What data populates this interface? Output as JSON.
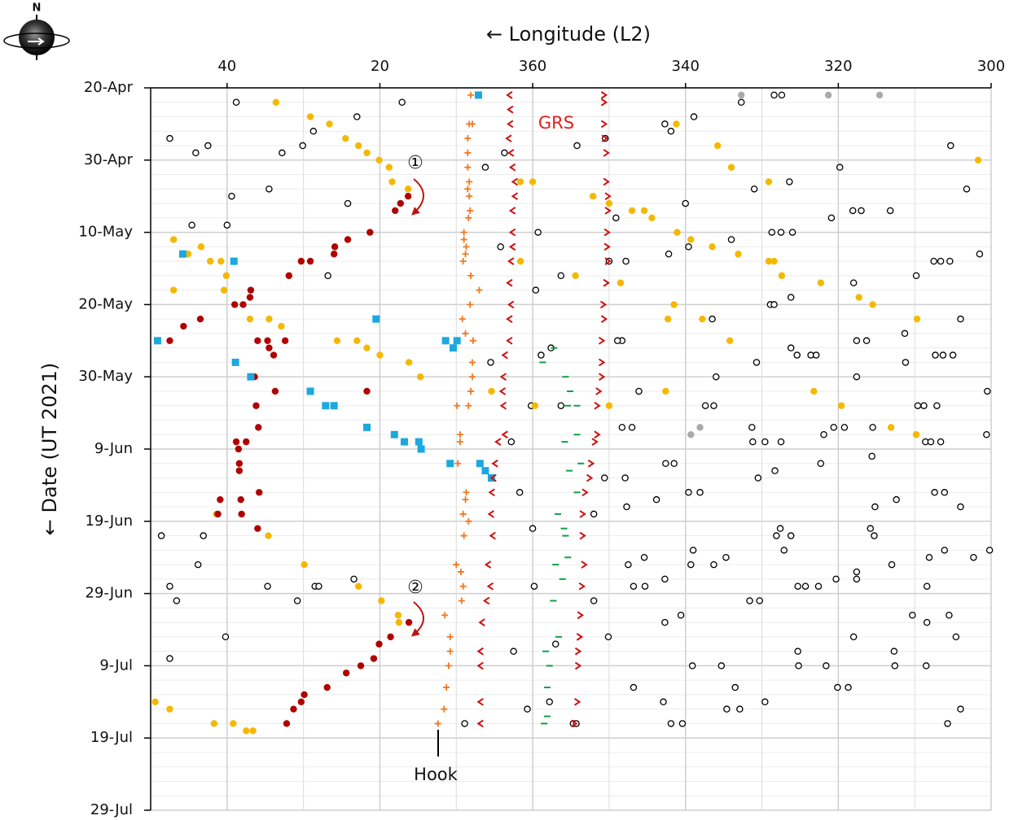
{
  "compass": "N",
  "chart_data": {
    "type": "scatter",
    "xlabel": "← Longitude (L2)",
    "ylabel": "← Date (UT 2021)",
    "annotations": [
      "GRS",
      "①",
      "②",
      "Hook"
    ],
    "xlim": [
      50,
      300
    ],
    "xticks": [
      40,
      20,
      360,
      340,
      320,
      300
    ],
    "ylim": [
      "20-Apr",
      "29-Jul"
    ],
    "yticks": [
      "20-Apr",
      "30-Apr",
      "10-May",
      "20-May",
      "30-May",
      "9-Jun",
      "19-Jun",
      "29-Jun",
      "9-Jul",
      "19-Jul",
      "29-Jul"
    ],
    "grid": true,
    "series": [
      {
        "color": "#000000",
        "marker": "circle-open",
        "x": [
          38.8,
          17.1,
          328.4,
          327.4,
          332.7,
          338.9,
          23,
          28.7,
          342.7,
          341.9,
          47.5,
          42.5,
          44.1,
          32.8,
          30.1,
          354.2,
          350.5,
          3.7,
          305.3,
          6.2,
          319.8,
          34.5,
          331,
          326.4,
          303.2,
          39.4,
          24.2,
          340,
          349.1,
          320.9,
          318.1,
          317,
          313.2,
          44.6,
          40,
          359.3,
          328.7,
          327.5,
          326,
          301.5,
          4.2,
          334,
          339.6,
          342.2,
          347.8,
          350,
          26.8,
          356.3,
          307.5,
          306.6,
          305.4,
          359.6,
          318,
          309.8,
          328.9,
          328.4,
          326.2,
          336.5,
          304,
          311.3,
          348.3,
          348.9,
          317.6,
          316.3,
          358.9,
          357.6,
          5.5,
          330.7,
          326.2,
          325.4,
          323.6,
          322.9,
          307.3,
          306.3,
          305,
          311.2,
          336,
          317.6,
          346.1,
          300.5,
          356.3,
          0.2,
          337.4,
          336.3,
          309.6,
          308.8,
          307.1,
          348.3,
          347,
          331.3,
          321.9,
          320.6,
          319.2,
          315.5,
          300.6,
          2.8,
          331.2,
          329.6,
          327.5,
          308.6,
          307.9,
          306.6,
          315.6,
          342.6,
          341.5,
          322.3,
          350.6,
          347.9,
          330.5,
          328.3,
          1.7,
          339.6,
          338.1,
          307.4,
          306.1,
          343.8,
          312.4,
          352,
          347.7,
          315.2,
          304,
          48.6,
          43.1,
          0,
          328.1,
          327.6,
          326.2,
          315.8,
          315.3,
          300.2,
          339,
          327.1,
          306.1,
          308.1,
          302.3,
          43.8,
          347.5,
          345.4,
          339.3,
          336.3,
          334.7,
          317.6,
          317.6,
          313,
          47.5,
          34.7,
          28.5,
          28,
          23.4,
          359.8,
          346.8,
          345.3,
          342.7,
          325.3,
          324.3,
          322.6,
          320.3,
          308.4,
          46.6,
          30.8,
          352,
          331.6,
          330.3,
          340.6,
          310.3,
          305.5,
          342.7,
          308.4,
          40.2,
          350.1,
          318,
          304.6,
          357,
          2.5,
          47.5,
          325.3,
          312.7,
          339.1,
          335.3,
          325.2,
          321.6,
          312.6,
          308.5,
          346.8,
          333.5,
          320.1,
          318.7,
          357.8,
          0.7,
          342.9,
          329.6,
          334.6,
          332.9,
          304,
          8.9,
          354.7,
          354.3,
          341.9,
          340.4,
          305.7
        ],
        "y": [
          "22-Apr",
          "22-Apr",
          "21-Apr",
          "21-Apr",
          "22-Apr",
          "24-Apr",
          "24-Apr",
          "26-Apr",
          "25-Apr",
          "26-Apr",
          "27-Apr",
          "28-Apr",
          "29-Apr",
          "29-Apr",
          "28-Apr",
          "28-Apr",
          "27-Apr",
          "29-Apr",
          "28-Apr",
          "1-May",
          "1-May",
          "4-May",
          "4-May",
          "3-May",
          "4-May",
          "5-May",
          "6-May",
          "6-May",
          "8-May",
          "8-May",
          "7-May",
          "7-May",
          "7-May",
          "9-May",
          "9-May",
          "10-May",
          "10-May",
          "10-May",
          "10-May",
          "13-May",
          "12-May",
          "11-May",
          "12-May",
          "13-May",
          "14-May",
          "14-May",
          "16-May",
          "16-May",
          "14-May",
          "14-May",
          "14-May",
          "18-May",
          "17-May",
          "16-May",
          "20-May",
          "20-May",
          "19-May",
          "22-May",
          "22-May",
          "24-May",
          "25-May",
          "25-May",
          "25-May",
          "25-May",
          "27-May",
          "26-May",
          "28-May",
          "28-May",
          "26-May",
          "27-May",
          "27-May",
          "27-May",
          "27-May",
          "27-May",
          "27-May",
          "28-May",
          "30-May",
          "30-May",
          "1-Jun",
          "1-Jun",
          "3-Jun",
          "3-Jun",
          "3-Jun",
          "3-Jun",
          "3-Jun",
          "3-Jun",
          "3-Jun",
          "6-Jun",
          "6-Jun",
          "6-Jun",
          "7-Jun",
          "6-Jun",
          "6-Jun",
          "6-Jun",
          "7-Jun",
          "8-Jun",
          "8-Jun",
          "8-Jun",
          "8-Jun",
          "8-Jun",
          "8-Jun",
          "8-Jun",
          "10-Jun",
          "11-Jun",
          "11-Jun",
          "11-Jun",
          "13-Jun",
          "13-Jun",
          "13-Jun",
          "12-Jun",
          "15-Jun",
          "15-Jun",
          "15-Jun",
          "15-Jun",
          "15-Jun",
          "16-Jun",
          "16-Jun",
          "18-Jun",
          "17-Jun",
          "17-Jun",
          "17-Jun",
          "21-Jun",
          "21-Jun",
          "20-Jun",
          "21-Jun",
          "20-Jun",
          "21-Jun",
          "20-Jun",
          "21-Jun",
          "23-Jun",
          "23-Jun",
          "23-Jun",
          "23-Jun",
          "24-Jun",
          "24-Jun",
          "25-Jun",
          "25-Jun",
          "24-Jun",
          "25-Jun",
          "25-Jun",
          "24-Jun",
          "26-Jun",
          "27-Jun",
          "25-Jun",
          "28-Jun",
          "28-Jun",
          "28-Jun",
          "28-Jun",
          "27-Jun",
          "28-Jun",
          "28-Jun",
          "28-Jun",
          "27-Jun",
          "28-Jun",
          "28-Jun",
          "28-Jun",
          "27-Jun",
          "28-Jun",
          "30-Jun",
          "30-Jun",
          "30-Jun",
          "30-Jun",
          "30-Jun",
          "2-Jul",
          "2-Jul",
          "2-Jul",
          "3-Jul",
          "3-Jul",
          "5-Jul",
          "5-Jul",
          "5-Jul",
          "5-Jul",
          "6-Jul",
          "7-Jul",
          "8-Jul",
          "7-Jul",
          "7-Jul",
          "9-Jul",
          "9-Jul",
          "9-Jul",
          "9-Jul",
          "9-Jul",
          "9-Jul",
          "12-Jul",
          "12-Jul",
          "12-Jul",
          "12-Jul",
          "14-Jul",
          "15-Jul",
          "14-Jul",
          "14-Jul",
          "15-Jul",
          "15-Jul",
          "15-Jul",
          "17-Jul",
          "17-Jul",
          "17-Jul",
          "17-Jul",
          "17-Jul",
          "17-Jul"
        ]
      },
      {
        "color": "#f5b800",
        "marker": "circle",
        "x": [
          33.6,
          29.1,
          26.6,
          24.5,
          22.8,
          21.7,
          20.1,
          18.8,
          18.4,
          16.3,
          341.2,
          335.8,
          301.7,
          334,
          1.6,
          0,
          329.1,
          352.1,
          350,
          347,
          345.4,
          344.4,
          341.1,
          339.3,
          336.5,
          333.1,
          329.1,
          328.4,
          327.4,
          47,
          45.1,
          43.4,
          42.2,
          40.8,
          40.1,
          47,
          40.4,
          1.6,
          354.4,
          348.5,
          322.3,
          341.5,
          317.3,
          315.5,
          37,
          34.5,
          32.9,
          342.3,
          337.8,
          309.7,
          334.2,
          25.6,
          23,
          21.7,
          20,
          16.2,
          14.7,
          5.4,
          342.6,
          323.2,
          359.7,
          350,
          319.6,
          313.1,
          309.8,
          41.4,
          34.6,
          29.9,
          22.8,
          19.8,
          17.6,
          17.5,
          49.4,
          47.5,
          41.7,
          39.2,
          37.5,
          36.6
        ],
        "y": [
          "22-Apr",
          "24-Apr",
          "25-Apr",
          "27-Apr",
          "28-Apr",
          "29-Apr",
          "30-Apr",
          "1-May",
          "3-May",
          "4-May",
          "25-Apr",
          "28-Apr",
          "30-Apr",
          "1-May",
          "3-May",
          "3-May",
          "3-May",
          "5-May",
          "6-May",
          "7-May",
          "7-May",
          "8-May",
          "10-May",
          "11-May",
          "12-May",
          "13-May",
          "14-May",
          "14-May",
          "16-May",
          "11-May",
          "13-May",
          "12-May",
          "14-May",
          "14-May",
          "16-May",
          "18-May",
          "18-May",
          "14-May",
          "16-May",
          "17-May",
          "17-May",
          "20-May",
          "19-May",
          "20-May",
          "22-May",
          "22-May",
          "23-May",
          "22-May",
          "22-May",
          "22-May",
          "25-May",
          "25-May",
          "25-May",
          "26-May",
          "27-May",
          "28-May",
          "30-May",
          "1-Jun",
          "1-Jun",
          "1-Jun",
          "3-Jun",
          "3-Jun",
          "3-Jun",
          "6-Jun",
          "7-Jun",
          "18-Jun",
          "21-Jun",
          "25-Jun",
          "28-Jun",
          "30-Jun",
          "2-Jul",
          "3-Jul",
          "14-Jul",
          "15-Jul",
          "17-Jul",
          "17-Jul",
          "18-Jul",
          "18-Jul"
        ]
      },
      {
        "color": "#b00000",
        "marker": "circle",
        "x": [
          16.3,
          17.3,
          18,
          21.3,
          24.2,
          25.9,
          26,
          29.1,
          30.3,
          31.9,
          36.9,
          37,
          39,
          37.9,
          43.5,
          45.7,
          47.5,
          36,
          34.7,
          32.4,
          34.5,
          33.9,
          36.4,
          33.7,
          21.7,
          36.2,
          35.9,
          38.8,
          37.5,
          38.5,
          38.4,
          38.4,
          35.8,
          38.2,
          40.9,
          41.2,
          38.1,
          36,
          16.2,
          18.6,
          20.1,
          20.8,
          22.5,
          24.4,
          26.9,
          29.9,
          30.3,
          31.3,
          32.2
        ],
        "y": [
          "5-May",
          "6-May",
          "7-May",
          "10-May",
          "11-May",
          "12-May",
          "13-May",
          "14-May",
          "14-May",
          "16-May",
          "18-May",
          "19-May",
          "20-May",
          "20-May",
          "22-May",
          "23-May",
          "25-May",
          "25-May",
          "25-May",
          "25-May",
          "26-May",
          "27-May",
          "30-May",
          "1-Jun",
          "1-Jun",
          "3-Jun",
          "6-Jun",
          "8-Jun",
          "8-Jun",
          "9-Jun",
          "11-Jun",
          "12-Jun",
          "15-Jun",
          "16-Jun",
          "16-Jun",
          "18-Jun",
          "18-Jun",
          "20-Jun",
          "3-Jul",
          "5-Jul",
          "6-Jul",
          "8-Jul",
          "9-Jul",
          "10-Jul",
          "12-Jul",
          "13-Jul",
          "14-Jul",
          "15-Jul",
          "17-Jul"
        ]
      },
      {
        "color": "#1ca8e0",
        "marker": "square",
        "x": [
          7.1,
          45.8,
          39.1,
          20.5,
          49.1,
          11.4,
          9.9,
          10.4,
          38.9,
          36.9,
          29.1,
          27.1,
          26,
          21.7,
          18.1,
          16.8,
          14.9,
          14.6,
          10.8,
          6.9,
          6.2,
          5.4
        ],
        "y": [
          "21-Apr",
          "13-May",
          "14-May",
          "22-May",
          "25-May",
          "25-May",
          "25-May",
          "26-May",
          "28-May",
          "30-May",
          "1-Jun",
          "3-Jun",
          "3-Jun",
          "6-Jun",
          "7-Jun",
          "8-Jun",
          "8-Jun",
          "9-Jun",
          "11-Jun",
          "11-Jun",
          "12-Jun",
          "13-Jun"
        ]
      },
      {
        "color": "#aaaaaa",
        "marker": "circle",
        "x": [
          332.7,
          321.3,
          314.6,
          339.3,
          338.1
        ],
        "y": [
          "21-Apr",
          "21-Apr",
          "21-Apr",
          "7-Jun",
          "6-Jun"
        ]
      },
      {
        "color": "#f07820",
        "marker": "plus",
        "x": [
          8.1,
          8.3,
          7.9,
          8.5,
          8.5,
          8.5,
          8.3,
          8.5,
          8.3,
          8.2,
          8.4,
          9,
          9,
          8.7,
          8.8,
          9.1,
          8.1,
          7,
          8.2,
          9.2,
          8.8,
          7.8,
          7.9,
          7.9,
          8.1,
          9.9,
          8.4,
          9.5,
          9.5,
          9.8,
          8.7,
          8.8,
          9.1,
          8.4,
          9,
          10,
          9.4,
          9.1,
          9.3,
          11.5,
          10.8,
          10.8,
          11,
          11.3,
          11.6,
          12.4
        ],
        "y": [
          "21-Apr",
          "25-Apr",
          "25-Apr",
          "27-Apr",
          "29-Apr",
          "1-May",
          "3-May",
          "4-May",
          "5-May",
          "7-May",
          "8-May",
          "10-May",
          "11-May",
          "12-May",
          "13-May",
          "14-May",
          "16-May",
          "18-May",
          "20-May",
          "22-May",
          "24-May",
          "25-May",
          "28-May",
          "30-May",
          "1-Jun",
          "3-Jun",
          "3-Jun",
          "7-Jun",
          "8-Jun",
          "11-Jun",
          "15-Jun",
          "16-Jun",
          "18-Jun",
          "19-Jun",
          "21-Jun",
          "25-Jun",
          "26-Jun",
          "28-Jun",
          "30-Jun",
          "2-Jul",
          "5-Jul",
          "7-Jul",
          "9-Jul",
          "12-Jul",
          "15-Jul",
          "17-Jul"
        ]
      },
      {
        "color": "#d01010",
        "marker": "lt",
        "x": [
          3,
          2.9,
          2.9,
          3.1,
          2.8,
          2.6,
          2.3,
          2.3,
          2.6,
          2.6,
          2.6,
          2.8,
          3,
          2.8,
          3,
          3,
          3.6,
          3.8,
          3.9,
          3.8,
          3.6,
          4.5,
          4.9,
          5.1,
          5.3,
          5.4,
          5.2,
          5.8,
          5.5,
          6,
          6.6,
          6.8,
          6.8,
          6.8,
          6.8
        ],
        "y": [
          "21-Apr",
          "23-Apr",
          "25-Apr",
          "27-Apr",
          "29-Apr",
          "1-May",
          "3-May",
          "5-May",
          "7-May",
          "10-May",
          "12-May",
          "14-May",
          "17-May",
          "20-May",
          "22-May",
          "25-May",
          "27-May",
          "30-May",
          "1-Jun",
          "3-Jun",
          "7-Jun",
          "8-Jun",
          "11-Jun",
          "13-Jun",
          "15-Jun",
          "18-Jun",
          "21-Jun",
          "25-Jun",
          "28-Jun",
          "30-Jun",
          "3-Jul",
          "7-Jul",
          "9-Jul",
          "14-Jul",
          "17-Jul"
        ]
      },
      {
        "color": "#d01010",
        "marker": "gt",
        "x": [
          350.7,
          350.7,
          350.7,
          350.6,
          350.4,
          350.4,
          350.2,
          350.2,
          350.3,
          350.3,
          350.2,
          350.4,
          350.8,
          350.7,
          351,
          351,
          351,
          351.4,
          351.6,
          351.6,
          351.9,
          352.4,
          352.6,
          353.2,
          353.5,
          353.5,
          353.3,
          353.6,
          353.8,
          353.9,
          354.1,
          354.1,
          354.2,
          354.6
        ],
        "y": [
          "21-Apr",
          "22-Apr",
          "25-Apr",
          "27-Apr",
          "29-Apr",
          "3-May",
          "5-May",
          "7-May",
          "10-May",
          "12-May",
          "14-May",
          "17-May",
          "20-May",
          "22-May",
          "25-May",
          "28-May",
          "30-May",
          "1-Jun",
          "3-Jun",
          "7-Jun",
          "8-Jun",
          "11-Jun",
          "13-Jun",
          "15-Jun",
          "18-Jun",
          "21-Jun",
          "25-Jun",
          "28-Jun",
          "2-Jul",
          "5-Jul",
          "7-Jul",
          "9-Jul",
          "14-Jul",
          "17-Jul"
        ]
      },
      {
        "color": "#10a040",
        "marker": "dash",
        "x": [
          358.7,
          355.7,
          357.2,
          355.1,
          355.4,
          354.2,
          355.8,
          353.7,
          355.2,
          354.2,
          356.7,
          355.7,
          355.9,
          357,
          355.4,
          356.1,
          357.3,
          356.6,
          358.3,
          357.8,
          358.1,
          358.5,
          358.1,
          354.2
        ],
        "y": [
          "28-May",
          "30-May",
          "26-May",
          "1-Jun",
          "3-Jun",
          "7-Jun",
          "8-Jun",
          "11-Jun",
          "12-Jun",
          "15-Jun",
          "18-Jun",
          "21-Jun",
          "20-Jun",
          "25-Jun",
          "24-Jun",
          "27-Jun",
          "30-Jun",
          "5-Jul",
          "7-Jul",
          "9-Jul",
          "12-Jul",
          "17-Jul",
          "16-Jul",
          "3-Jun"
        ]
      }
    ]
  }
}
